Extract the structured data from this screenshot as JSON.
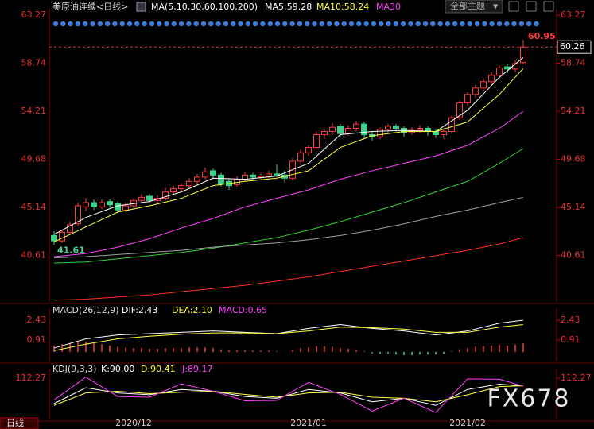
{
  "theme_button": "全部主题",
  "footer_period": "日线",
  "watermark": "FX678",
  "chart_data": [
    {
      "type": "candlestick",
      "title": "美原油连续<日线>",
      "indicator": "MA(5,10,30,60,100,200)",
      "categories": [
        null,
        null,
        null,
        null,
        null,
        null,
        null,
        null,
        null,
        null,
        "2020/12",
        null,
        null,
        null,
        null,
        null,
        null,
        null,
        null,
        null,
        null,
        null,
        null,
        null,
        null,
        null,
        null,
        null,
        null,
        null,
        null,
        null,
        "2021/01",
        null,
        null,
        null,
        null,
        null,
        null,
        null,
        null,
        null,
        null,
        null,
        null,
        null,
        null,
        null,
        null,
        null,
        null,
        null,
        "2021/02",
        null,
        null,
        null,
        null,
        null,
        null,
        null
      ],
      "open": [
        42.5,
        42.0,
        42.8,
        43.6,
        45.2,
        45.6,
        45.2,
        45.7,
        45.5,
        44.9,
        45.3,
        45.8,
        46.2,
        45.8,
        46.0,
        46.6,
        46.9,
        47.2,
        47.6,
        48.0,
        48.6,
        48.2,
        47.6,
        47.3,
        47.8,
        48.2,
        48.0,
        48.1,
        48.3,
        48.2,
        47.9,
        49.5,
        50.3,
        50.8,
        52.0,
        52.3,
        52.8,
        52.1,
        52.6,
        53.0,
        52.0,
        51.8,
        52.5,
        52.8,
        52.6,
        52.2,
        52.4,
        52.6,
        52.3,
        52.0,
        52.3,
        53.6,
        55.0,
        55.8,
        56.4,
        57.0,
        57.6,
        58.4,
        58.2,
        58.8
      ],
      "high": [
        42.9,
        43.0,
        43.8,
        45.6,
        46.0,
        45.9,
        45.9,
        45.9,
        45.7,
        45.6,
        46.0,
        46.4,
        46.4,
        46.3,
        47.0,
        47.2,
        47.4,
        47.9,
        48.3,
        48.9,
        48.8,
        48.4,
        47.9,
        48.1,
        48.5,
        48.4,
        48.4,
        48.6,
        49.2,
        48.6,
        49.8,
        50.6,
        51.0,
        52.3,
        52.6,
        53.1,
        53.0,
        52.9,
        53.3,
        53.2,
        52.3,
        52.7,
        53.0,
        53.0,
        52.8,
        52.7,
        52.9,
        52.8,
        52.5,
        52.6,
        53.8,
        55.2,
        56.0,
        56.7,
        57.3,
        57.9,
        58.5,
        58.7,
        59.0,
        60.95
      ],
      "low": [
        41.61,
        41.8,
        42.5,
        43.4,
        44.8,
        44.9,
        45.0,
        45.1,
        44.6,
        44.7,
        45.1,
        45.5,
        45.6,
        45.5,
        45.8,
        46.3,
        46.6,
        47.0,
        47.3,
        47.8,
        47.9,
        47.1,
        46.8,
        47.1,
        47.6,
        47.7,
        47.8,
        47.9,
        48.0,
        47.5,
        47.7,
        49.3,
        50.0,
        50.6,
        51.6,
        52.0,
        51.8,
        51.9,
        52.3,
        51.6,
        51.4,
        51.6,
        52.2,
        52.3,
        51.8,
        52.0,
        52.2,
        51.9,
        51.7,
        51.6,
        52.1,
        53.4,
        54.7,
        55.5,
        56.1,
        56.7,
        57.3,
        57.8,
        57.9,
        58.6
      ],
      "close": [
        42.0,
        42.8,
        43.5,
        45.3,
        45.6,
        45.2,
        45.6,
        45.4,
        44.9,
        45.3,
        45.8,
        46.1,
        45.8,
        46.0,
        46.6,
        46.9,
        47.2,
        47.6,
        48.0,
        48.5,
        48.2,
        47.4,
        47.2,
        47.8,
        48.2,
        48.0,
        48.1,
        48.3,
        48.2,
        47.9,
        49.5,
        50.3,
        50.8,
        52.0,
        52.3,
        52.7,
        52.1,
        52.6,
        53.0,
        52.0,
        51.8,
        52.5,
        52.8,
        52.6,
        52.2,
        52.4,
        52.6,
        52.3,
        52.0,
        52.3,
        53.6,
        55.0,
        55.8,
        56.4,
        57.0,
        57.6,
        58.3,
        58.2,
        58.7,
        60.26
      ],
      "up_color": "#ff3c3c",
      "down_color": "#3fd08a",
      "ylim": [
        36.24,
        63.57
      ],
      "yticks": [
        40.61,
        45.14,
        49.68,
        54.21,
        58.74,
        63.27
      ],
      "grid": false,
      "max_label": 60.95,
      "min_label": 41.61,
      "last_price": 60.26,
      "series": [
        {
          "name": "MA5:59.28",
          "color": "#ffffff",
          "x": [
            0,
            4,
            8,
            12,
            16,
            20,
            24,
            28,
            32,
            36,
            40,
            44,
            48,
            52,
            56,
            59
          ],
          "values": [
            42.6,
            44.2,
            45.3,
            45.7,
            46.6,
            47.9,
            47.8,
            48.1,
            49.3,
            52.0,
            52.3,
            52.4,
            52.3,
            54.3,
            57.4,
            59.28
          ]
        },
        {
          "name": "MA10:58.24",
          "color": "#ffff40",
          "x": [
            0,
            4,
            8,
            12,
            16,
            20,
            24,
            28,
            32,
            36,
            40,
            44,
            48,
            52,
            56,
            59
          ],
          "values": [
            41.9,
            43.3,
            44.7,
            45.3,
            46.0,
            47.2,
            47.6,
            47.9,
            48.6,
            50.8,
            51.9,
            52.3,
            52.3,
            53.2,
            55.8,
            58.24
          ]
        },
        {
          "name": "MA30",
          "color": "#ff40ff",
          "x": [
            0,
            4,
            8,
            12,
            16,
            20,
            24,
            28,
            32,
            36,
            40,
            44,
            48,
            52,
            56,
            59
          ],
          "values": [
            40.5,
            40.8,
            41.4,
            42.2,
            43.2,
            44.1,
            45.2,
            46.0,
            46.8,
            47.8,
            48.6,
            49.3,
            50.0,
            51.0,
            52.6,
            54.2
          ]
        },
        {
          "color": "#30d030",
          "x": [
            0,
            4,
            8,
            12,
            16,
            20,
            24,
            28,
            32,
            36,
            40,
            44,
            48,
            52,
            56,
            59
          ],
          "values": [
            39.9,
            40.0,
            40.3,
            40.6,
            40.9,
            41.3,
            41.8,
            42.3,
            43.0,
            43.8,
            44.7,
            45.6,
            46.6,
            47.6,
            49.3,
            50.7
          ]
        },
        {
          "color": "#a0a0a0",
          "x": [
            0,
            4,
            8,
            12,
            16,
            20,
            24,
            28,
            32,
            36,
            40,
            44,
            48,
            52,
            56,
            59
          ],
          "values": [
            40.4,
            40.5,
            40.7,
            40.9,
            41.1,
            41.4,
            41.6,
            41.8,
            42.1,
            42.5,
            43.0,
            43.6,
            44.3,
            44.9,
            45.6,
            46.1
          ]
        },
        {
          "color": "#ff3020",
          "x": [
            0,
            4,
            8,
            12,
            16,
            20,
            24,
            28,
            32,
            36,
            40,
            44,
            48,
            52,
            56,
            59
          ],
          "values": [
            36.4,
            36.5,
            36.7,
            36.9,
            37.2,
            37.5,
            37.8,
            38.2,
            38.6,
            39.1,
            39.6,
            40.1,
            40.6,
            41.1,
            41.7,
            42.3
          ]
        }
      ]
    },
    {
      "type": "macd",
      "title": "MACD(26,12,9)",
      "ylim": [
        -0.73,
        3.1
      ],
      "yticks": [
        0.91,
        2.43
      ],
      "histogram": {
        "name": "MACD:0.65",
        "color": "#ff40ff",
        "up_color": "#ff3c3c",
        "down_color": "#3fd08a",
        "values": [
          0.5,
          0.6,
          0.7,
          0.8,
          0.8,
          0.7,
          0.6,
          0.5,
          0.4,
          0.35,
          0.3,
          0.3,
          0.25,
          0.25,
          0.3,
          0.3,
          0.3,
          0.35,
          0.35,
          0.35,
          0.3,
          0.2,
          0.15,
          0.15,
          0.15,
          0.1,
          0.1,
          0.1,
          0.05,
          0.0,
          0.2,
          0.3,
          0.35,
          0.45,
          0.45,
          0.4,
          0.3,
          0.25,
          0.2,
          0.05,
          -0.1,
          -0.15,
          -0.15,
          -0.2,
          -0.25,
          -0.25,
          -0.2,
          -0.2,
          -0.2,
          -0.15,
          0.05,
          0.2,
          0.3,
          0.4,
          0.45,
          0.5,
          0.55,
          0.5,
          0.55,
          0.65
        ]
      },
      "series": [
        {
          "name": "DIF:2.43",
          "color": "#ffffff",
          "x": [
            0,
            4,
            8,
            12,
            16,
            20,
            24,
            28,
            32,
            36,
            40,
            44,
            48,
            52,
            56,
            59
          ],
          "values": [
            0.3,
            1.0,
            1.3,
            1.4,
            1.5,
            1.6,
            1.5,
            1.4,
            1.8,
            2.1,
            1.8,
            1.6,
            1.3,
            1.6,
            2.2,
            2.43
          ]
        },
        {
          "name": "DEA:2.10",
          "color": "#ffff40",
          "x": [
            0,
            4,
            8,
            12,
            16,
            20,
            24,
            28,
            32,
            36,
            40,
            44,
            48,
            52,
            56,
            59
          ],
          "values": [
            0.1,
            0.6,
            1.0,
            1.2,
            1.35,
            1.45,
            1.45,
            1.4,
            1.6,
            1.9,
            1.85,
            1.75,
            1.5,
            1.5,
            1.9,
            2.1
          ]
        }
      ]
    },
    {
      "type": "line",
      "title": "KDJ(9,3,3)",
      "ylim": [
        -5,
        130
      ],
      "yticks": [
        112.27
      ],
      "series": [
        {
          "name": "K:90.00",
          "color": "#ffffff",
          "x": [
            0,
            4,
            8,
            12,
            16,
            20,
            24,
            28,
            32,
            36,
            40,
            44,
            48,
            52,
            56,
            59
          ],
          "values": [
            40,
            85,
            70,
            65,
            80,
            75,
            60,
            55,
            80,
            70,
            45,
            55,
            35,
            80,
            95,
            90.0
          ]
        },
        {
          "name": "D:90.41",
          "color": "#ffff40",
          "x": [
            0,
            4,
            8,
            12,
            16,
            20,
            24,
            28,
            32,
            36,
            40,
            44,
            48,
            52,
            56,
            59
          ],
          "values": [
            35,
            70,
            75,
            68,
            72,
            75,
            66,
            58,
            70,
            72,
            58,
            55,
            45,
            65,
            88,
            90.41
          ]
        },
        {
          "name": "J:89.17",
          "color": "#ff40ff",
          "x": [
            0,
            4,
            8,
            12,
            16,
            20,
            24,
            28,
            32,
            36,
            40,
            44,
            48,
            52,
            56,
            59
          ],
          "values": [
            50,
            115,
            60,
            58,
            96,
            75,
            48,
            49,
            100,
            66,
            19,
            55,
            15,
            110,
            109,
            89.17
          ]
        }
      ]
    }
  ]
}
